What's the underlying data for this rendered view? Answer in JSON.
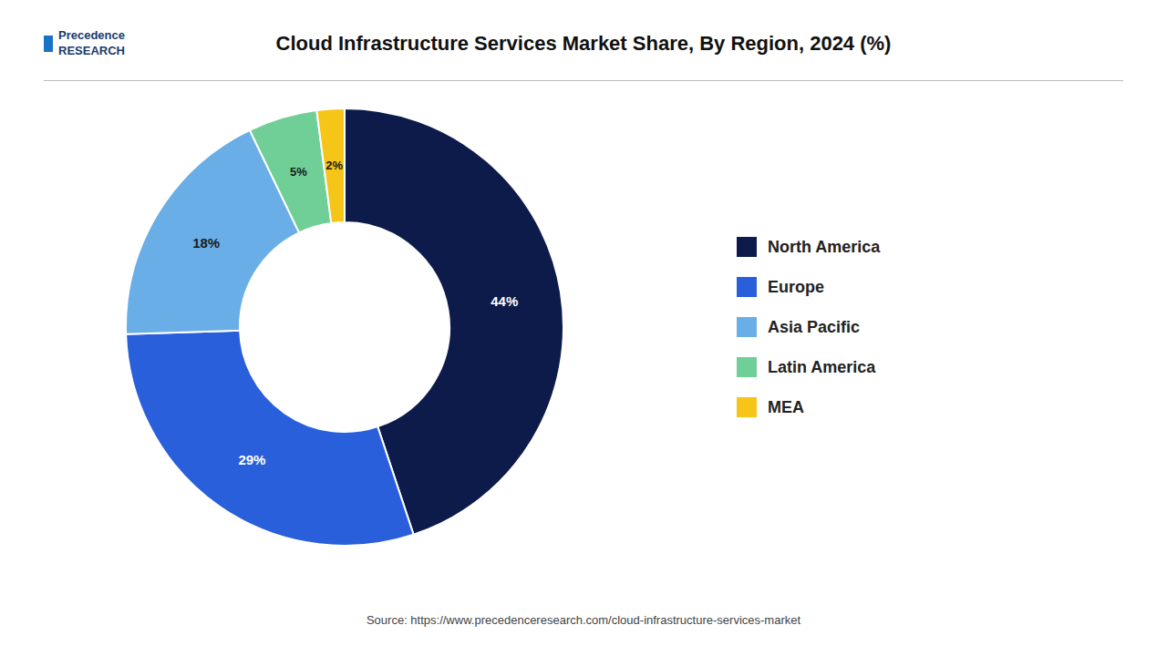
{
  "chart_data": {
    "type": "pie",
    "title": "Cloud Infrastructure Services Market Share, By Region, 2024 (%)",
    "categories": [
      "North America",
      "Europe",
      "Asia Pacific",
      "Latin America",
      "MEA"
    ],
    "values": [
      44,
      29,
      18,
      5,
      2
    ],
    "value_labels": [
      "44%",
      "29%",
      "18%",
      "5%",
      "2%"
    ],
    "colors": [
      "#0d1b4b",
      "#2a5fdb",
      "#6aaee8",
      "#6fcf97",
      "#f5c518"
    ],
    "data_labels": true,
    "legend": "right",
    "annotations": [
      "Precedence\nRESEARCH",
      "Source: https://www.precedenceresearch.com/cloud-infrastructure-services-market"
    ]
  }
}
